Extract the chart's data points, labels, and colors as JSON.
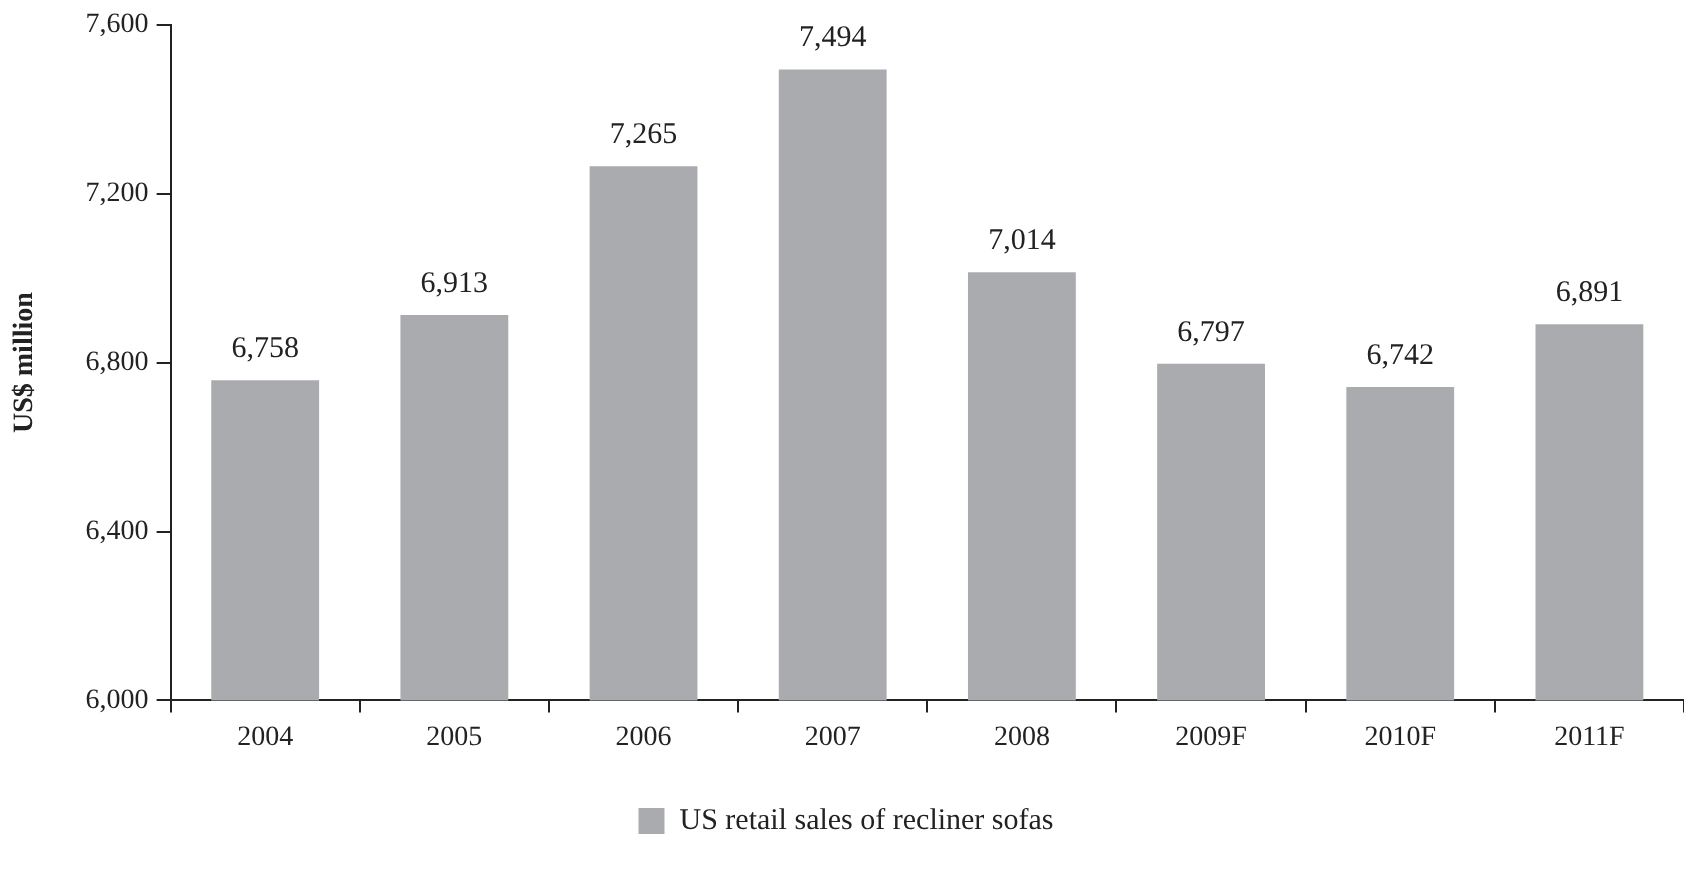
{
  "chart_data": {
    "type": "bar",
    "categories": [
      "2004",
      "2005",
      "2006",
      "2007",
      "2008",
      "2009F",
      "2010F",
      "2011F"
    ],
    "series": [
      {
        "name": "US retail sales of recliner sofas",
        "color": "#aaabaf",
        "values": [
          6758,
          6913,
          7265,
          7494,
          7014,
          6797,
          6742,
          6891
        ],
        "value_labels": [
          "6,758",
          "6,913",
          "7,265",
          "7,494",
          "7,014",
          "6,797",
          "6,742",
          "6,891"
        ]
      }
    ],
    "ylabel": "US$ million",
    "ylim": [
      6000,
      7600
    ],
    "yticks": [
      {
        "value": 6000,
        "label": "6,000"
      },
      {
        "value": 6400,
        "label": "6,400"
      },
      {
        "value": 6800,
        "label": "6,800"
      },
      {
        "value": 7200,
        "label": "7,200"
      },
      {
        "value": 7600,
        "label": "7,600"
      }
    ],
    "grid": false,
    "legend": "bottom"
  }
}
